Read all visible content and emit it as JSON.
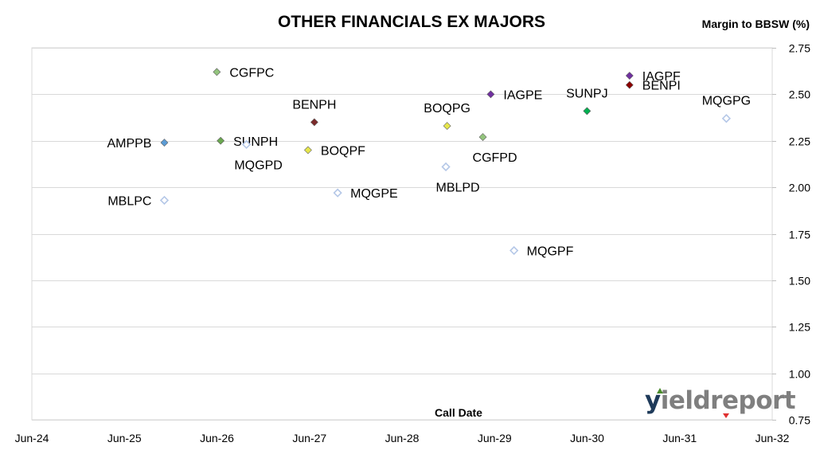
{
  "chart_data": {
    "type": "scatter",
    "title": "OTHER FINANCIALS EX MAJORS",
    "xlabel": "Call Date",
    "ylabel": "Margin to BBSW (%)",
    "x_tick_labels": [
      "Jun-24",
      "Jun-25",
      "Jun-26",
      "Jun-27",
      "Jun-28",
      "Jun-29",
      "Jun-30",
      "Jun-31",
      "Jun-32"
    ],
    "xlim": [
      "2024-06-30",
      "2032-06-30"
    ],
    "ylim": [
      0.75,
      2.75
    ],
    "y_ticks": [
      0.75,
      1.0,
      1.25,
      1.5,
      1.75,
      2.0,
      2.25,
      2.5,
      2.75
    ],
    "y_axis_position": "right",
    "grid": true,
    "points": [
      {
        "name": "CGFPC",
        "date": "2026-06-30",
        "value": 2.62,
        "color": "#93c47d",
        "filled": true,
        "label_pos": "right"
      },
      {
        "name": "AMPPB",
        "date": "2025-12-05",
        "value": 2.24,
        "color": "#5b9bd5",
        "filled": true,
        "label_pos": "left"
      },
      {
        "name": "SUNPH",
        "date": "2026-07-15",
        "value": 2.25,
        "color": "#6aa84f",
        "filled": true,
        "label_pos": "right"
      },
      {
        "name": "MQGPD",
        "date": "2026-10-25",
        "value": 2.23,
        "color": "#b4c7e7",
        "filled": false,
        "label_pos": "below"
      },
      {
        "name": "MBLPC",
        "date": "2025-12-05",
        "value": 1.93,
        "color": "#b4c7e7",
        "filled": false,
        "label_pos": "left"
      },
      {
        "name": "BENPH",
        "date": "2027-07-20",
        "value": 2.35,
        "color": "#7b2a2a",
        "filled": true,
        "label_pos": "above"
      },
      {
        "name": "BOQPF",
        "date": "2027-06-25",
        "value": 2.2,
        "color": "#e6e64c",
        "filled": true,
        "label_pos": "right"
      },
      {
        "name": "MQGPE",
        "date": "2027-10-20",
        "value": 1.97,
        "color": "#b4c7e7",
        "filled": false,
        "label_pos": "right"
      },
      {
        "name": "BOQPG",
        "date": "2028-12-25",
        "value": 2.33,
        "color": "#e6e64c",
        "filled": true,
        "label_pos": "above"
      },
      {
        "name": "MBLPD",
        "date": "2028-12-20",
        "value": 2.11,
        "color": "#b4c7e7",
        "filled": false,
        "label_pos": "below"
      },
      {
        "name": "CGFPD",
        "date": "2029-05-15",
        "value": 2.27,
        "color": "#93c47d",
        "filled": true,
        "label_pos": "below"
      },
      {
        "name": "IAGPE",
        "date": "2029-06-15",
        "value": 2.5,
        "color": "#7030a0",
        "filled": true,
        "label_pos": "right"
      },
      {
        "name": "MQGPF",
        "date": "2029-09-15",
        "value": 1.66,
        "color": "#b4c7e7",
        "filled": false,
        "label_pos": "right"
      },
      {
        "name": "SUNPJ",
        "date": "2030-06-30",
        "value": 2.41,
        "color": "#00b050",
        "filled": true,
        "label_pos": "above"
      },
      {
        "name": "IAGPF",
        "date": "2030-12-15",
        "value": 2.6,
        "color": "#7030a0",
        "filled": true,
        "label_pos": "right"
      },
      {
        "name": "BENPI",
        "date": "2030-12-15",
        "value": 2.55,
        "color": "#8b0000",
        "filled": true,
        "label_pos": "right"
      },
      {
        "name": "MQGPG",
        "date": "2032-01-01",
        "value": 2.37,
        "color": "#b4c7e7",
        "filled": false,
        "label_pos": "above"
      }
    ]
  },
  "logo": {
    "first": "y",
    "rest": "ieldreport"
  }
}
